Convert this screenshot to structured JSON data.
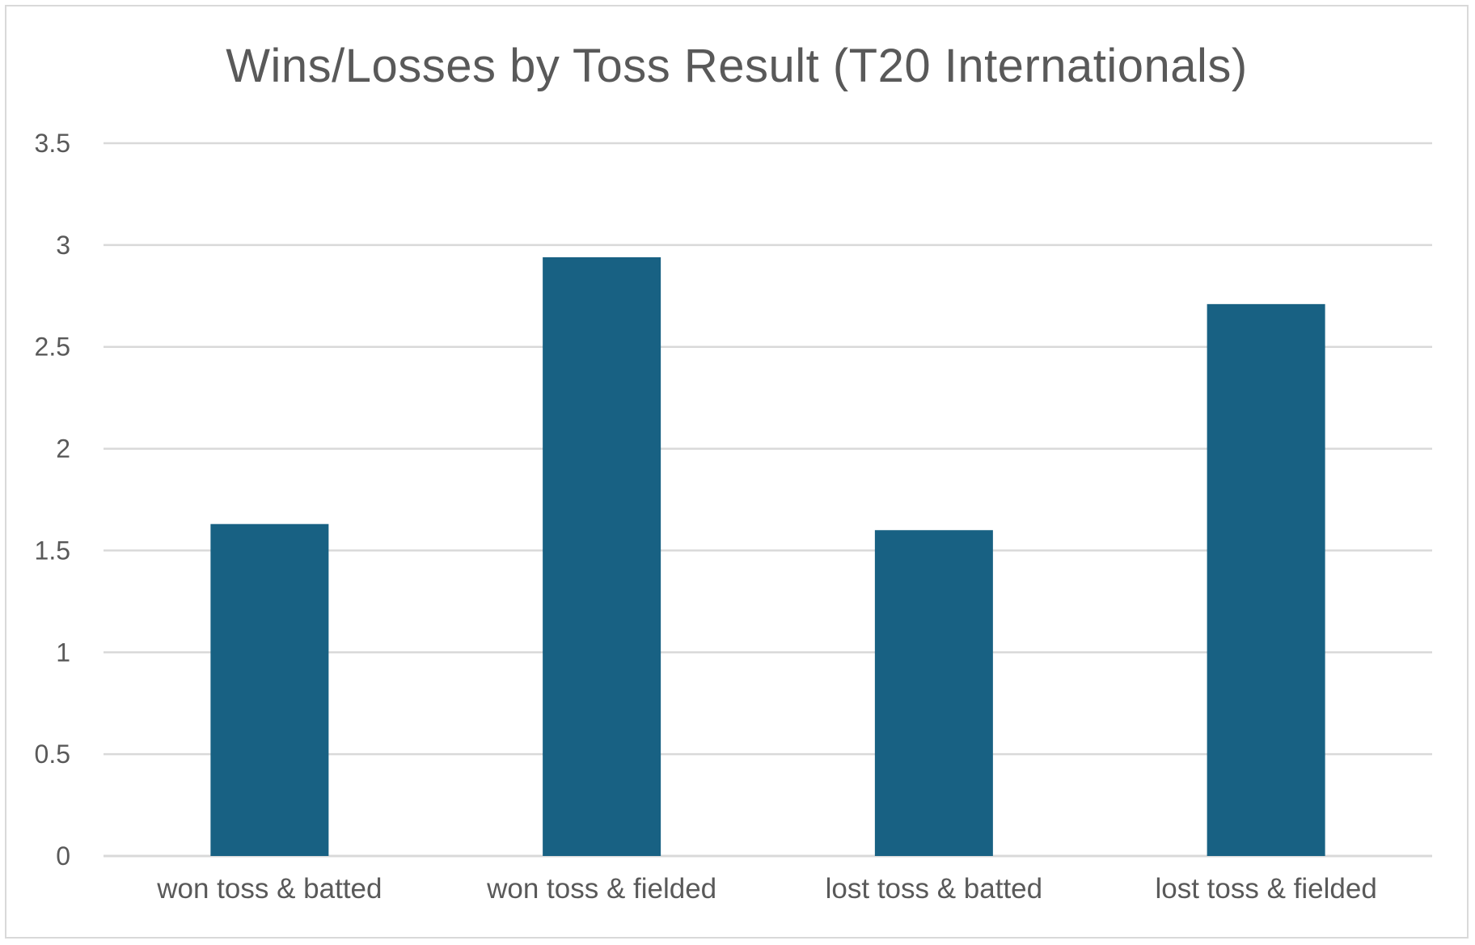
{
  "chart_data": {
    "type": "bar",
    "title": "Wins/Losses by Toss Result (T20 Internationals)",
    "categories": [
      "won toss & batted",
      "won toss & fielded",
      "lost toss & batted",
      "lost toss & fielded"
    ],
    "values": [
      1.63,
      2.94,
      1.6,
      2.71
    ],
    "xlabel": "",
    "ylabel": "",
    "ylim": [
      0,
      3.5
    ],
    "yticks": [
      "0",
      "0.5",
      "1",
      "1.5",
      "2",
      "2.5",
      "3",
      "3.5"
    ],
    "grid": true,
    "legend": "none",
    "colors": {
      "bar": "#186183",
      "grid": "#d9d9d9",
      "text": "#595959",
      "border": "#d9d9d9"
    }
  }
}
